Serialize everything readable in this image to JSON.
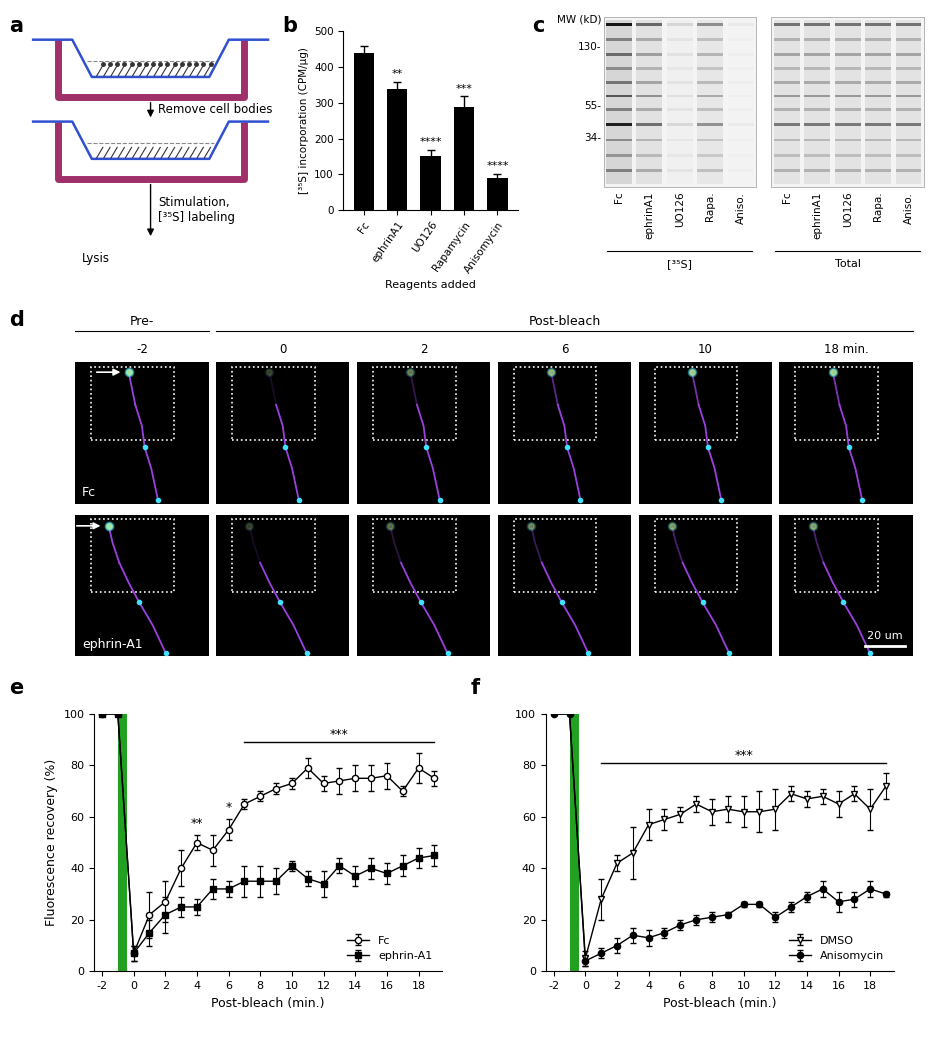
{
  "panel_labels": [
    "a",
    "b",
    "c",
    "d",
    "e",
    "f"
  ],
  "diagram": {
    "steps": [
      "Remove cell bodies",
      "Stimulation,\n[³⁵S] labeling"
    ],
    "end": "Lysis"
  },
  "gel": {
    "mw_title": "MW (kD)",
    "mw_marks": [
      {
        "value": 130,
        "label": "130-"
      },
      {
        "value": 55,
        "label": "55-"
      },
      {
        "value": 34,
        "label": "34-"
      }
    ],
    "lanes": [
      "Fc",
      "ephrinA1",
      "UO126",
      "Rapa.",
      "Aniso."
    ],
    "groups": [
      "[³⁵S]",
      "Total"
    ]
  },
  "images": {
    "header_pre": "Pre-",
    "header_post": "Post-bleach",
    "times": [
      -2,
      0,
      2,
      6,
      10,
      {
        "value": 18,
        "label": "18 min."
      }
    ],
    "rows": [
      "Fc",
      "ephrin-A1"
    ],
    "scale_bar": "20 um"
  },
  "chart_data": [
    {
      "type": "bar",
      "categories": [
        "Fc",
        "ephrinA1",
        "UO126",
        "Rapamycin",
        "Anisomycin"
      ],
      "values": [
        440,
        340,
        150,
        288,
        90
      ],
      "errors": [
        18,
        18,
        18,
        30,
        10
      ],
      "significance": [
        null,
        "**",
        "****",
        "***",
        "****"
      ],
      "color": "#000000",
      "ylabel": "[³⁵S] incorporation (CPM/µg)",
      "xlabel": "Reagents added",
      "ylim": [
        0,
        500
      ],
      "yticks": [
        0,
        100,
        200,
        300,
        400,
        500
      ]
    },
    {
      "type": "line",
      "x": [
        -2,
        -1,
        0,
        1,
        2,
        3,
        4,
        5,
        6,
        7,
        8,
        9,
        10,
        11,
        12,
        13,
        14,
        15,
        16,
        17,
        18,
        19
      ],
      "series": [
        {
          "name": "Fc",
          "color": "#000000",
          "marker": "open_circle",
          "values": [
            100,
            100,
            7,
            22,
            27,
            40,
            50,
            47,
            55,
            65,
            68,
            71,
            73,
            79,
            73,
            74,
            75,
            75,
            76,
            70,
            79,
            75
          ],
          "errors": [
            0,
            0,
            3,
            9,
            8,
            7,
            3,
            6,
            4,
            2,
            2,
            2,
            2,
            4,
            3,
            5,
            5,
            5,
            5,
            2,
            6,
            3
          ]
        },
        {
          "name": "ephrin-A1",
          "color": "#000000",
          "marker": "square",
          "values": [
            100,
            100,
            7,
            15,
            22,
            25,
            25,
            32,
            32,
            35,
            35,
            35,
            41,
            36,
            34,
            41,
            37,
            40,
            38,
            41,
            44,
            45
          ],
          "errors": [
            0,
            0,
            3,
            5,
            7,
            4,
            3,
            4,
            3,
            6,
            6,
            5,
            2,
            3,
            5,
            3,
            4,
            4,
            4,
            4,
            4,
            4
          ]
        }
      ],
      "xlabel": "Post-bleach (min.)",
      "ylabel": "Fluorescence recovery (%)",
      "xlim": [
        -2.5,
        19.5
      ],
      "xticks": [
        -2,
        0,
        2,
        4,
        6,
        8,
        10,
        12,
        14,
        16,
        18
      ],
      "ylim": [
        0,
        100
      ],
      "yticks": [
        0,
        20,
        40,
        60,
        80,
        100
      ],
      "legend": "lower right",
      "bleach_span": [
        -1,
        -0.4
      ],
      "annotations": [
        {
          "text": "**",
          "x": 4
        },
        {
          "text": "*",
          "x": 6
        },
        {
          "text": "***",
          "x_range": [
            7,
            19
          ]
        }
      ]
    },
    {
      "type": "line",
      "x": [
        -2,
        -1,
        0,
        1,
        2,
        3,
        4,
        5,
        6,
        7,
        8,
        9,
        10,
        11,
        12,
        13,
        14,
        15,
        16,
        17,
        18,
        19
      ],
      "series": [
        {
          "name": "DMSO",
          "color": "#000000",
          "marker": "open_triangle",
          "values": [
            100,
            100,
            5,
            28,
            42,
            46,
            57,
            59,
            61,
            65,
            62,
            63,
            62,
            62,
            63,
            69,
            67,
            68,
            65,
            69,
            63,
            72
          ],
          "errors": [
            0,
            0,
            3,
            8,
            3,
            10,
            6,
            4,
            3,
            3,
            5,
            5,
            6,
            8,
            8,
            3,
            3,
            3,
            5,
            3,
            8,
            5
          ]
        },
        {
          "name": "Anisomycin",
          "color": "#000000",
          "marker": "circle",
          "values": [
            100,
            100,
            4,
            7,
            10,
            14,
            13,
            15,
            18,
            20,
            21,
            22,
            26,
            26,
            21,
            25,
            29,
            32,
            27,
            28,
            32,
            30
          ],
          "errors": [
            0,
            0,
            2,
            2,
            3,
            3,
            3,
            2,
            2,
            2,
            2,
            1,
            1,
            1,
            2,
            2,
            2,
            3,
            4,
            3,
            3,
            1
          ]
        }
      ],
      "xlabel": "Post-bleach (min.)",
      "xlim": [
        -2.5,
        19.5
      ],
      "xticks": [
        -2,
        0,
        2,
        4,
        6,
        8,
        10,
        12,
        14,
        16,
        18
      ],
      "ylim": [
        0,
        100
      ],
      "yticks": [
        0,
        20,
        40,
        60,
        80,
        100
      ],
      "legend": "lower right",
      "bleach_span": [
        -1,
        -0.4
      ],
      "annotations": [
        {
          "text": "***",
          "x_range": [
            1,
            19
          ]
        }
      ]
    }
  ]
}
